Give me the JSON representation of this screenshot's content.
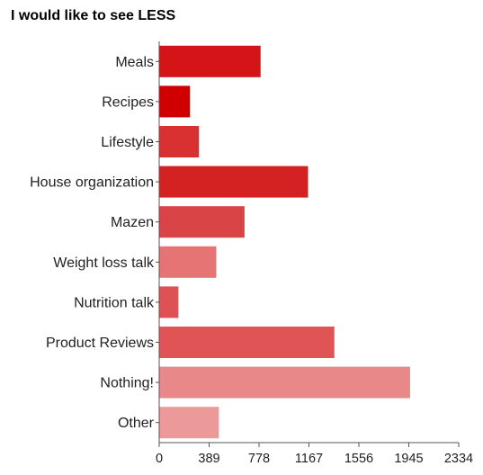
{
  "chart_data": {
    "type": "bar",
    "orientation": "horizontal",
    "title": "I would like to see LESS",
    "xlabel": "",
    "ylabel": "",
    "categories": [
      "Meals",
      "Recipes",
      "Lifestyle",
      "House organization",
      "Mazen",
      "Weight loss talk",
      "Nutrition talk",
      "Product Reviews",
      "Nothing!",
      "Other"
    ],
    "values": [
      790,
      240,
      310,
      1160,
      665,
      445,
      150,
      1365,
      1955,
      465
    ],
    "colors": [
      "#d41417",
      "#d00000",
      "#d93032",
      "#d42121",
      "#d94446",
      "#e67475",
      "#df5254",
      "#e05455",
      "#e98888",
      "#ec9a99"
    ],
    "xlim": [
      0,
      2334
    ],
    "xticks": [
      "0",
      "389",
      "778",
      "1167",
      "1556",
      "1945",
      "2334"
    ],
    "grid": false,
    "legend": "none"
  }
}
